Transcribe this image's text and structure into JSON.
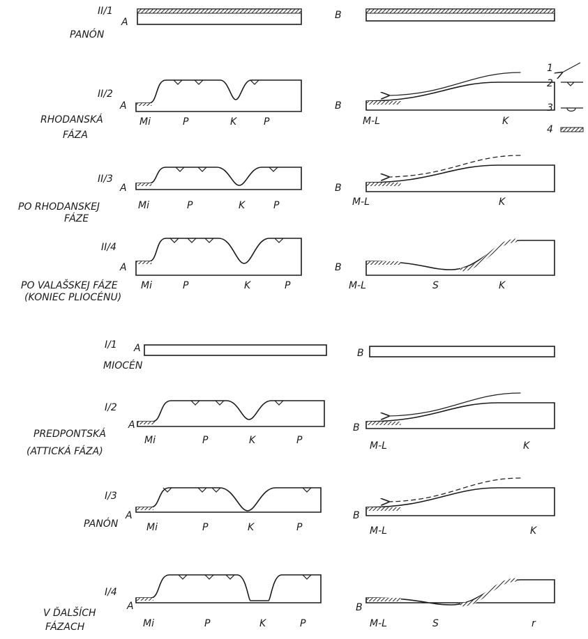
{
  "panels": [
    {
      "label": "II/1",
      "caption": [
        "PANÓN"
      ],
      "side_a": {
        "letter": "A"
      },
      "side_b": {
        "letter": "B"
      }
    },
    {
      "label": "II/2",
      "caption": [
        "RHODANSKÁ",
        "FÁZA"
      ],
      "side_a": {
        "letter": "A",
        "labels": [
          "Mi",
          "P",
          "K",
          "P"
        ]
      },
      "side_b": {
        "letter": "B",
        "labels": [
          "M-L",
          "K"
        ]
      }
    },
    {
      "label": "II/3",
      "caption": [
        "PO RHODANSKEJ",
        "FÁZE"
      ],
      "side_a": {
        "letter": "A",
        "labels": [
          "Mi",
          "P",
          "K",
          "P"
        ]
      },
      "side_b": {
        "letter": "B",
        "labels": [
          "M-L",
          "K"
        ]
      }
    },
    {
      "label": "II/4",
      "caption": [
        "PO VALAŠSKEJ FÁZE",
        "(KONIEC PLIOCÉNU)"
      ],
      "side_a": {
        "letter": "A",
        "labels": [
          "Mi",
          "P",
          "K",
          "P"
        ]
      },
      "side_b": {
        "letter": "B",
        "labels": [
          "M-L",
          "S",
          "K"
        ]
      }
    },
    {
      "label": "I/1",
      "caption": [
        "MIOCÉN"
      ],
      "side_a": {
        "letter": "A"
      },
      "side_b": {
        "letter": "B"
      }
    },
    {
      "label": "I/2",
      "caption": [
        "PREDPONTSKÁ",
        "(ATTICKÁ FÁZA)"
      ],
      "side_a": {
        "letter": "A",
        "labels": [
          "Mi",
          "P",
          "K",
          "P"
        ]
      },
      "side_b": {
        "letter": "B",
        "labels": [
          "M-L",
          "K"
        ]
      }
    },
    {
      "label": "I/3",
      "caption": [
        "PANÓN"
      ],
      "side_a": {
        "letter": "A",
        "labels": [
          "Mi",
          "P",
          "K",
          "P"
        ]
      },
      "side_b": {
        "letter": "B",
        "labels": [
          "M-L",
          "K"
        ]
      }
    },
    {
      "label": "I/4",
      "caption": [
        "V ĎALŠÍCH",
        "FÁZACH"
      ],
      "side_a": {
        "letter": "A",
        "labels": [
          "Mi",
          "P",
          "K",
          "P"
        ]
      },
      "side_b": {
        "letter": "B",
        "labels": [
          "M-L",
          "S",
          "r"
        ]
      }
    }
  ],
  "legend": [
    "1",
    "2",
    "3",
    "4"
  ]
}
